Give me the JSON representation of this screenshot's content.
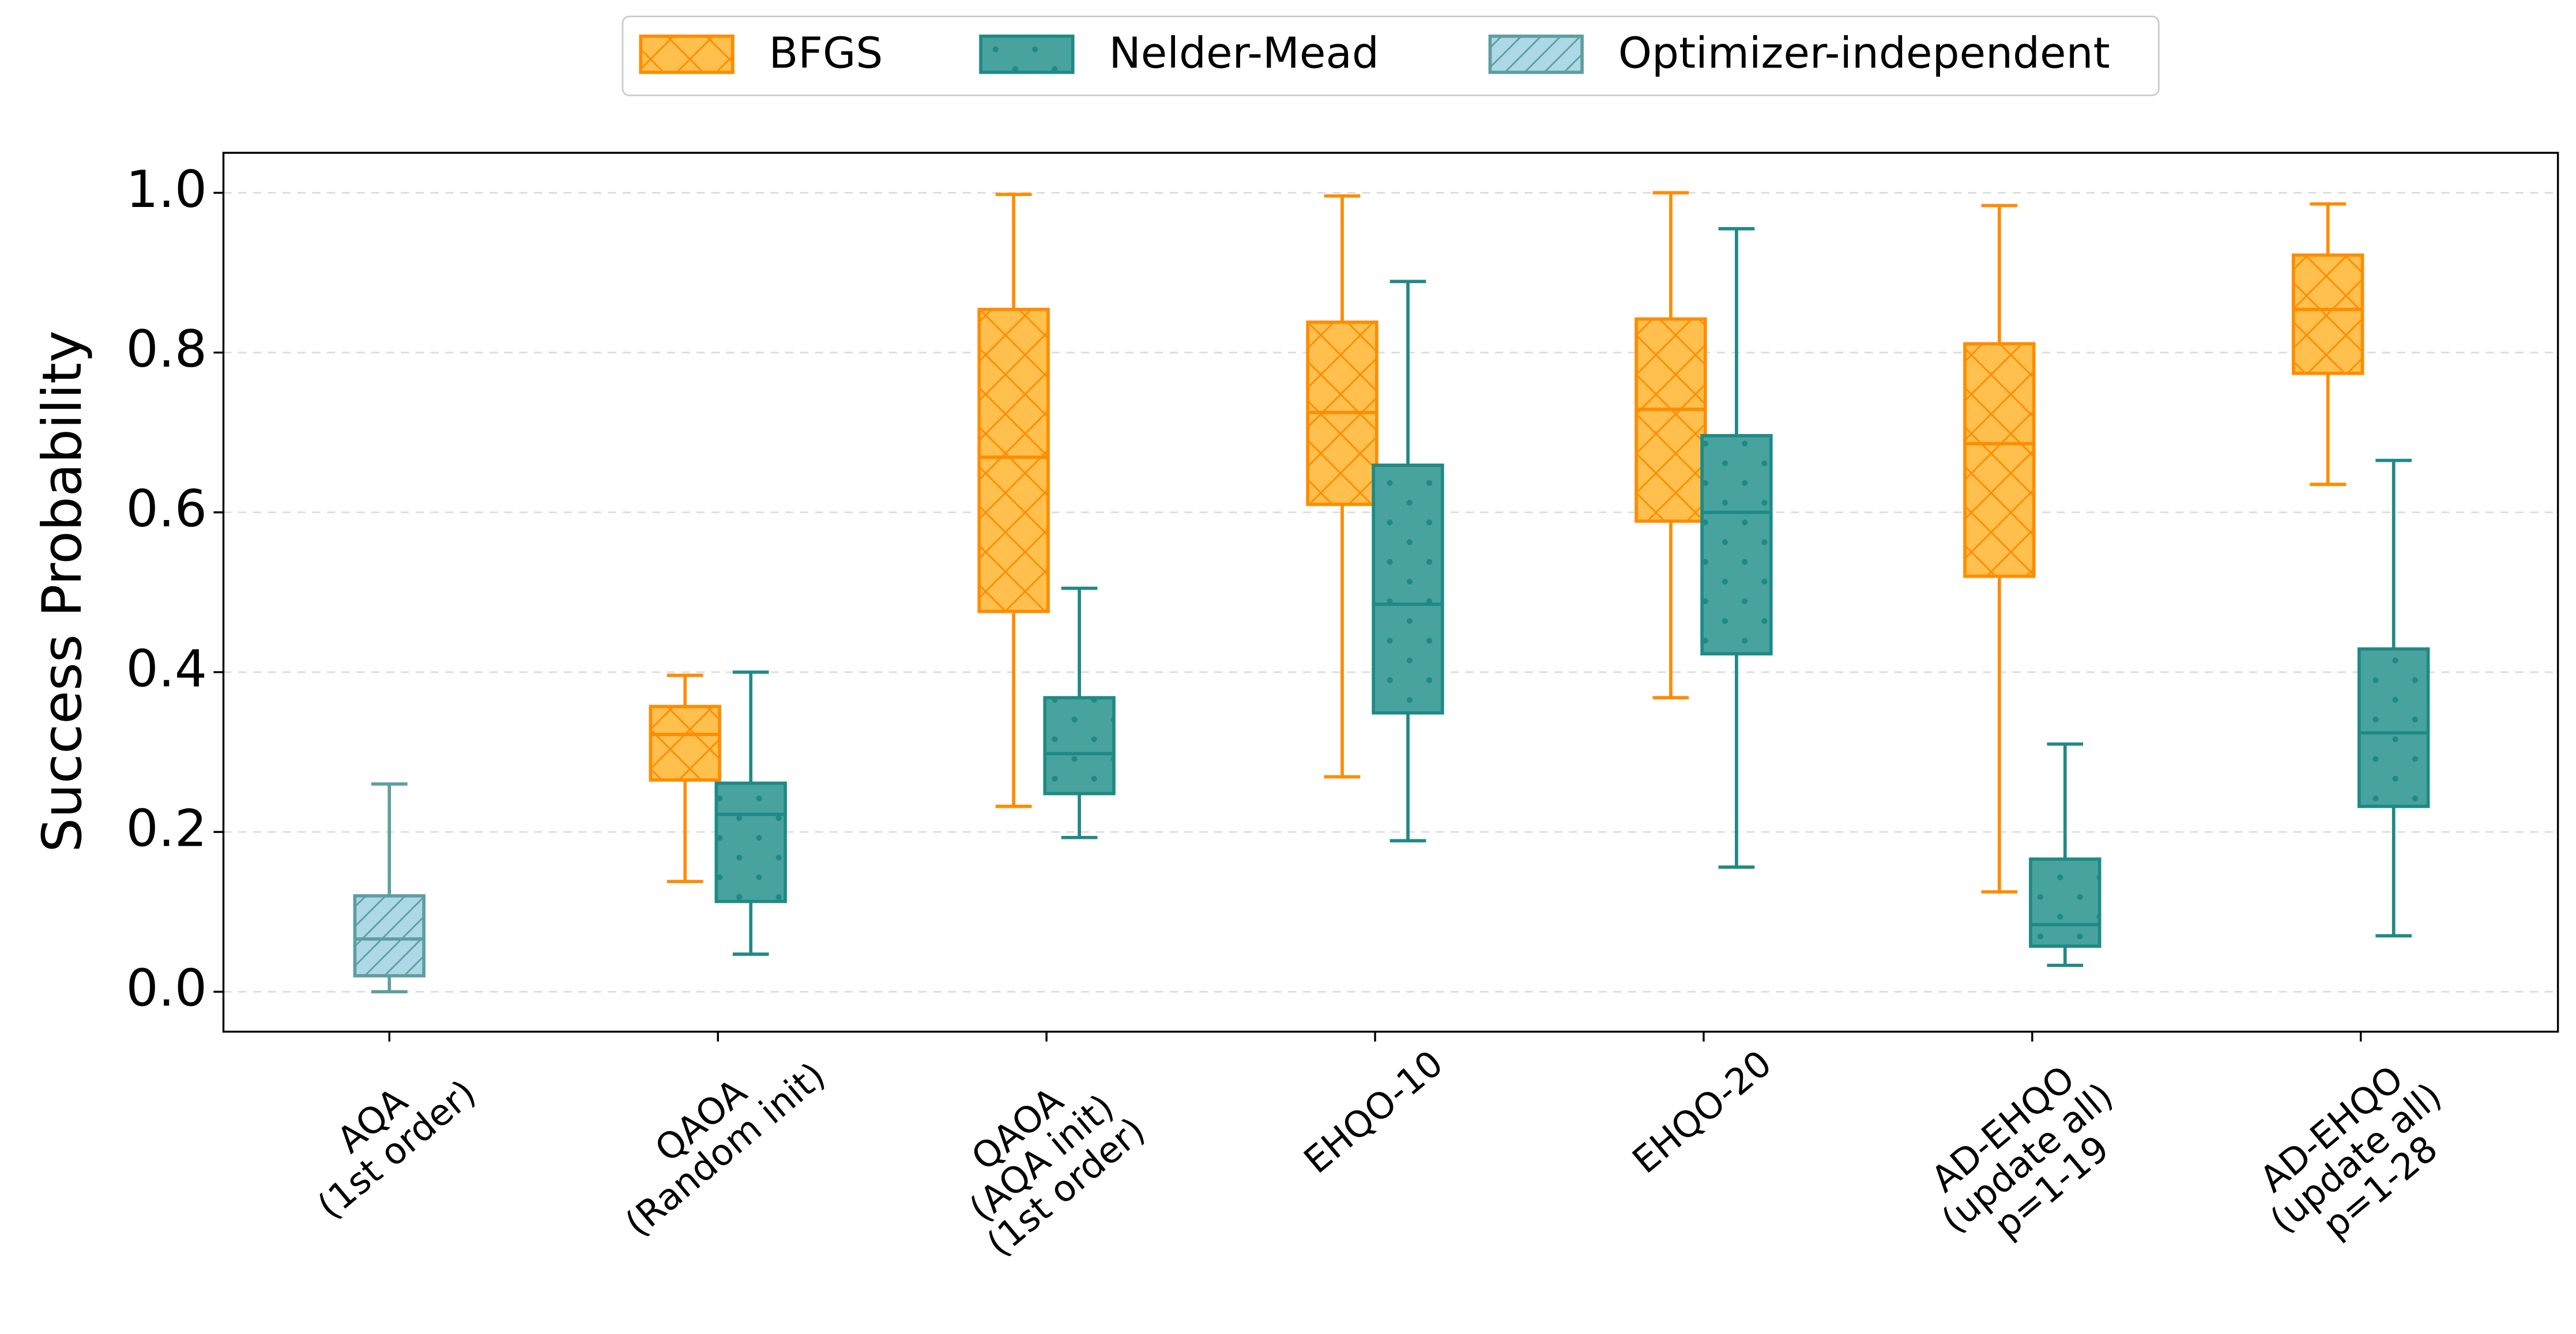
{
  "chart_data": {
    "type": "box",
    "y_label": "Success Probability",
    "categories": [
      [
        "AQA",
        "(1st order)"
      ],
      [
        "QAOA",
        "(Random init)"
      ],
      [
        "QAOA",
        "(AQA init)",
        "(1st order)"
      ],
      [
        "EHQO-10"
      ],
      [
        "EHQO-20"
      ],
      [
        "AD-EHQO",
        "(update all)",
        "p=1-19"
      ],
      [
        "AD-EHQO",
        "(update all)",
        "p=1-28"
      ]
    ],
    "series": [
      {
        "name": "BFGS",
        "color": "#ffc04d",
        "edgecolor": "#ff8c00",
        "hatch": "x",
        "values": [
          null,
          {
            "min": 0.138,
            "q1": 0.265,
            "median": 0.322,
            "q3": 0.357,
            "max": 0.396
          },
          {
            "min": 0.232,
            "q1": 0.476,
            "median": 0.669,
            "q3": 0.854,
            "max": 0.998
          },
          {
            "min": 0.269,
            "q1": 0.61,
            "median": 0.725,
            "q3": 0.838,
            "max": 0.996
          },
          {
            "min": 0.368,
            "q1": 0.589,
            "median": 0.729,
            "q3": 0.842,
            "max": 1.0
          },
          {
            "min": 0.125,
            "q1": 0.52,
            "median": 0.686,
            "q3": 0.811,
            "max": 0.984
          },
          {
            "min": 0.635,
            "q1": 0.774,
            "median": 0.854,
            "q3": 0.922,
            "max": 0.986
          }
        ]
      },
      {
        "name": "Nelder-Mead",
        "color": "#48a39f",
        "edgecolor": "#1f8a85",
        "hatch": "dots",
        "values": [
          null,
          {
            "min": 0.047,
            "q1": 0.113,
            "median": 0.222,
            "q3": 0.261,
            "max": 0.4
          },
          {
            "min": 0.193,
            "q1": 0.248,
            "median": 0.298,
            "q3": 0.368,
            "max": 0.505
          },
          {
            "min": 0.189,
            "q1": 0.349,
            "median": 0.485,
            "q3": 0.659,
            "max": 0.889
          },
          {
            "min": 0.156,
            "q1": 0.423,
            "median": 0.6,
            "q3": 0.696,
            "max": 0.955
          },
          {
            "min": 0.033,
            "q1": 0.057,
            "median": 0.084,
            "q3": 0.166,
            "max": 0.31
          },
          {
            "min": 0.07,
            "q1": 0.232,
            "median": 0.324,
            "q3": 0.429,
            "max": 0.665
          }
        ]
      },
      {
        "name": "Optimizer-independent",
        "color": "#add8e6",
        "edgecolor": "#5f9ea0",
        "hatch": "/",
        "values": [
          {
            "min": 0.0,
            "q1": 0.02,
            "median": 0.066,
            "q3": 0.12,
            "max": 0.26
          },
          null,
          null,
          null,
          null,
          null,
          null
        ]
      }
    ],
    "ylim": [
      -0.05,
      1.05
    ],
    "yticks": [
      {
        "value": 0,
        "label": "0.0"
      },
      {
        "value": 0.2,
        "label": "0.2"
      },
      {
        "value": 0.4,
        "label": "0.4"
      },
      {
        "value": 0.6,
        "label": "0.6"
      },
      {
        "value": 0.8,
        "label": "0.8"
      },
      {
        "value": 1,
        "label": "1.0"
      }
    ],
    "grid": true,
    "legend": "top"
  }
}
